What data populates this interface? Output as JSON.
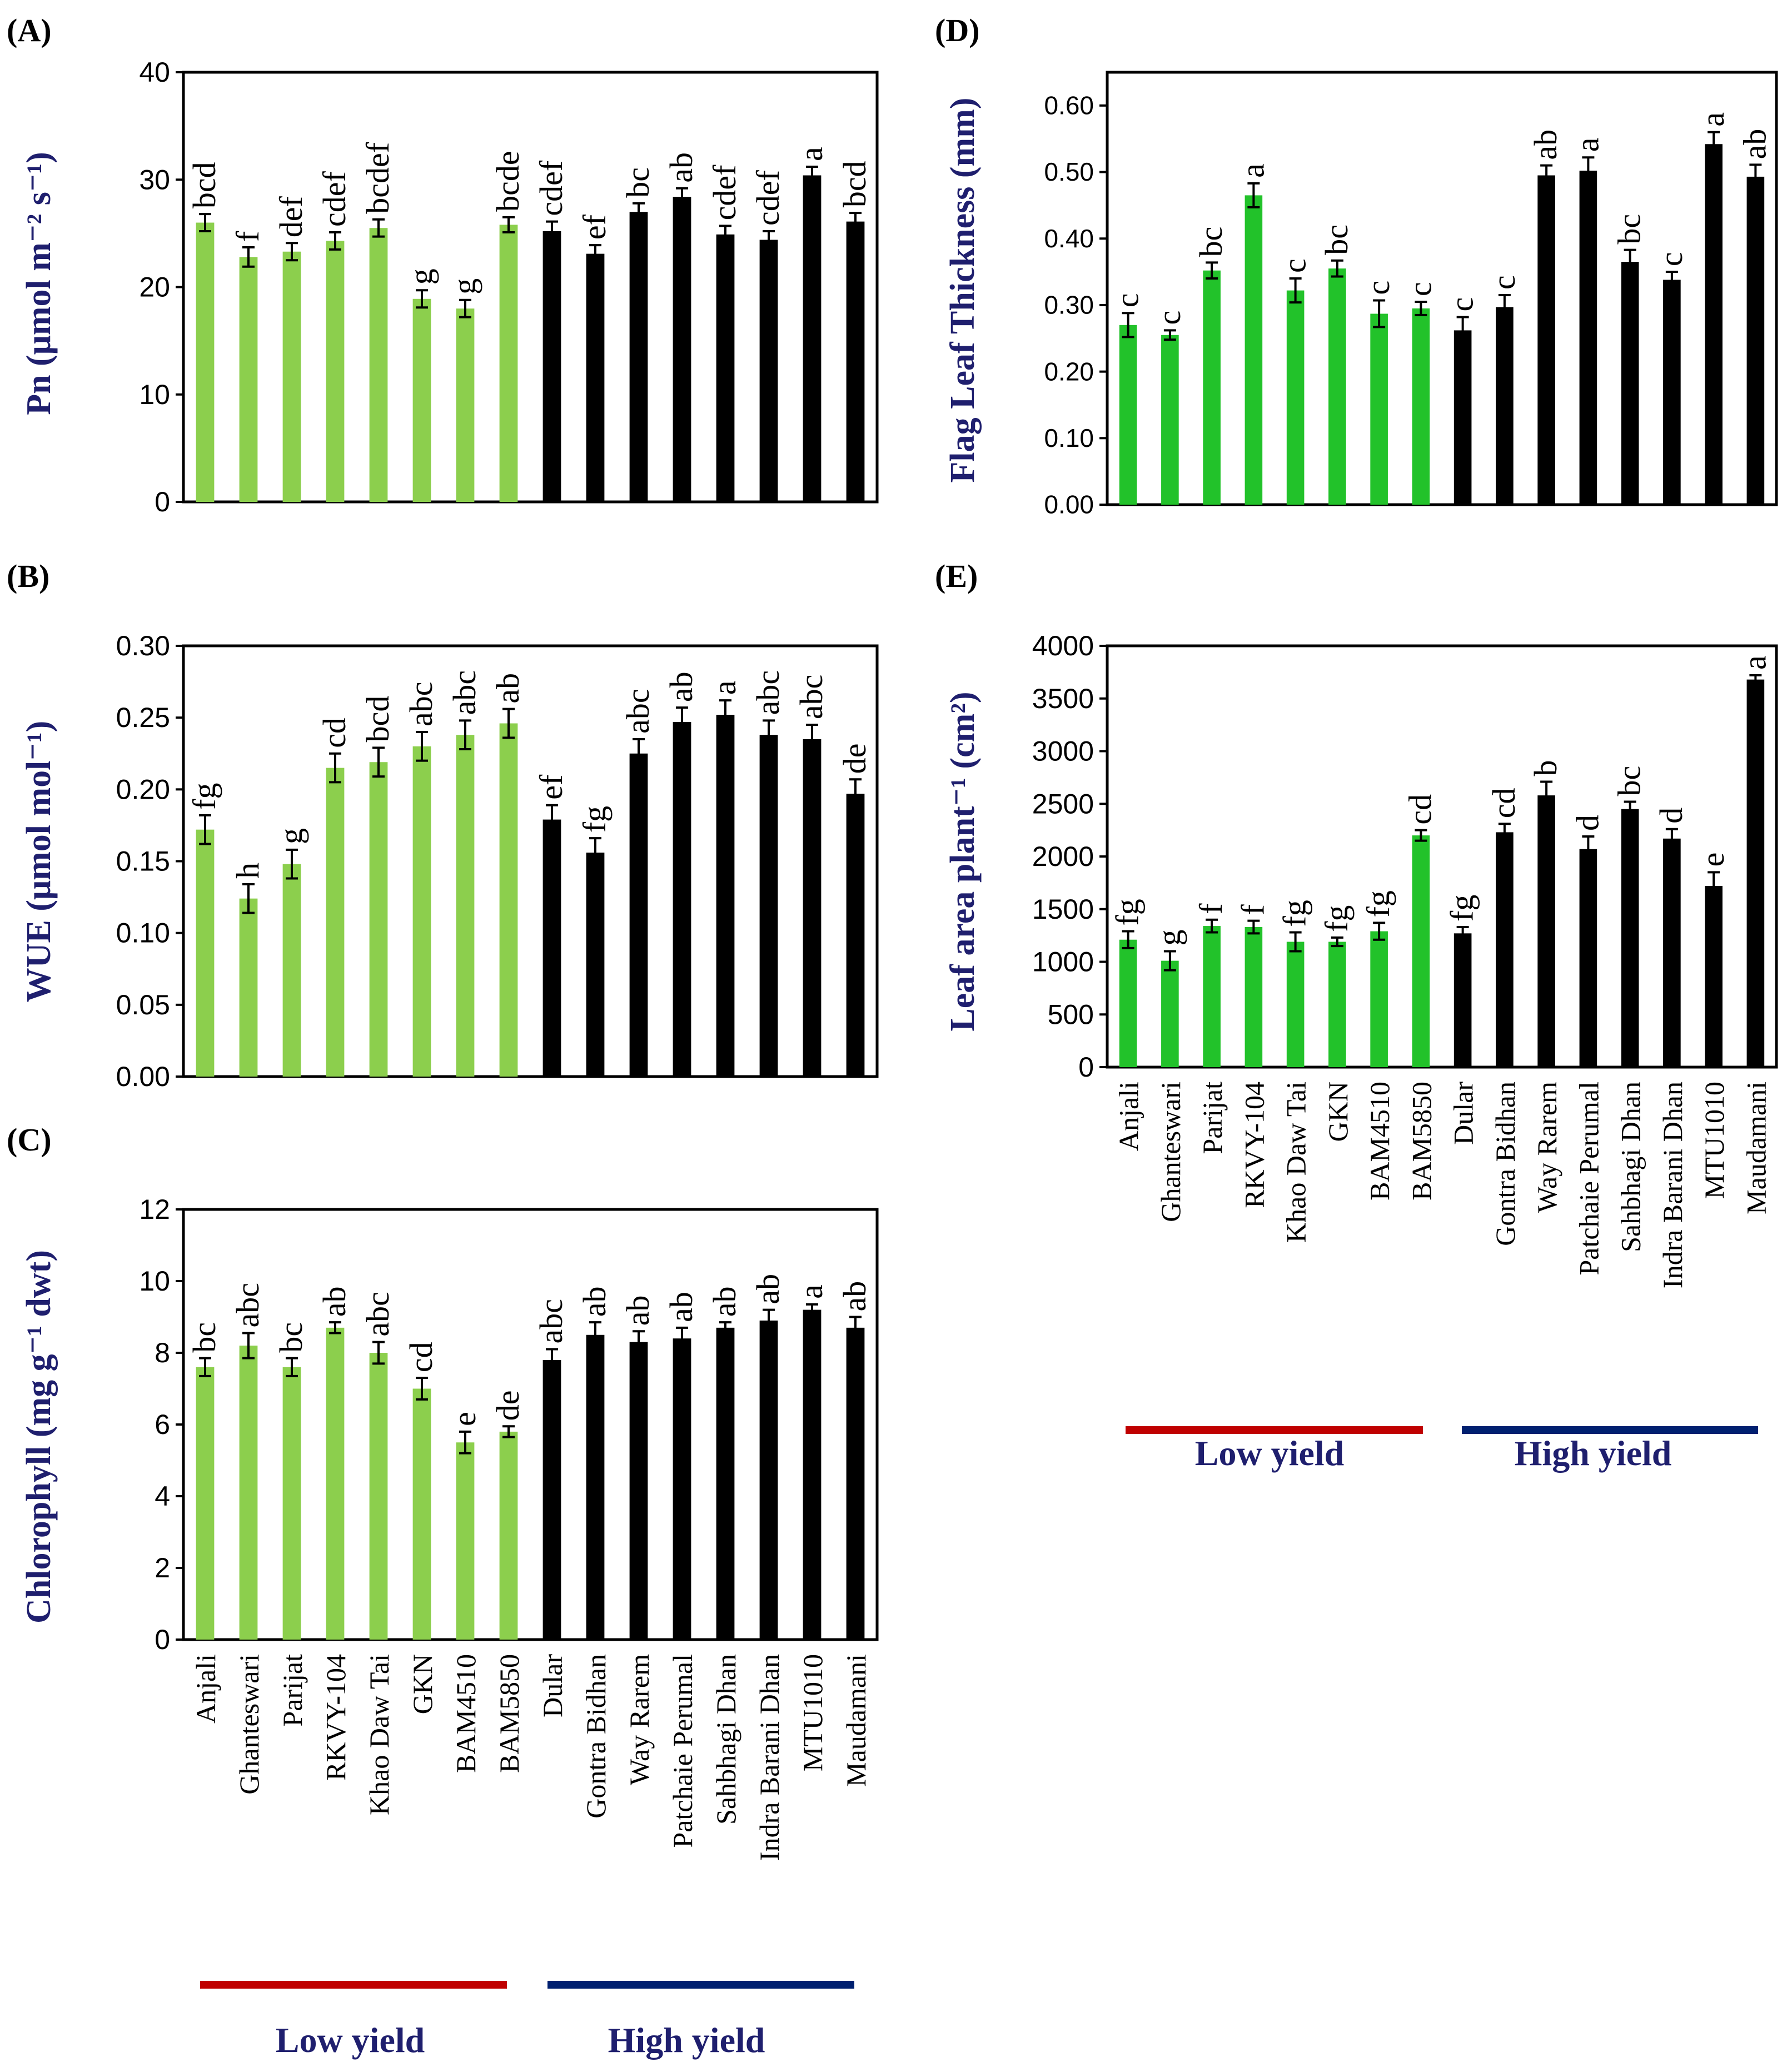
{
  "colors": {
    "low_yield_bar_abc": "#8ccf4d",
    "low_yield_bar_de": "#22c22a",
    "high_yield_bar": "#000000",
    "axis_label": "#1f1f6e",
    "low_yield_line": "#c00000",
    "high_yield_line": "#002070"
  },
  "categories": [
    "Anjali",
    "Ghanteswari",
    "Parijat",
    "RKVY-104",
    "Khao Daw Tai",
    "GKN",
    "BAM4510",
    "BAM5850",
    "Dular",
    "Gontra Bidhan",
    "Way Rarem",
    "Patchaie Perumal",
    "Sahbhagi Dhan",
    "Indra Barani Dhan",
    "MTU1010",
    "Maudamani"
  ],
  "legend": {
    "low_yield": "Low yield",
    "high_yield": "High yield"
  },
  "chart_data": [
    {
      "id": "A",
      "panel_label": "(A)",
      "type": "bar",
      "ylabel": "Pn (μmol m⁻² s⁻¹)",
      "ylim": [
        0,
        40
      ],
      "yticks": [
        0,
        10,
        20,
        30,
        40
      ],
      "tick_format": "0",
      "values": [
        26.0,
        22.8,
        23.3,
        24.3,
        25.5,
        18.9,
        18.0,
        25.8,
        25.2,
        23.1,
        27.0,
        28.4,
        24.9,
        24.4,
        30.4,
        26.1
      ],
      "errors": [
        0.8,
        0.9,
        0.8,
        0.8,
        0.8,
        0.8,
        0.8,
        0.7,
        0.9,
        0.8,
        0.8,
        0.8,
        0.8,
        0.8,
        0.8,
        0.8
      ],
      "letters": [
        "bcd",
        "f",
        "def",
        "cdef",
        "bcdef",
        "g",
        "g",
        "bcde",
        "cdef",
        "ef",
        "bc",
        "ab",
        "cdef",
        "cdef",
        "a",
        "bcd"
      ]
    },
    {
      "id": "B",
      "panel_label": "(B)",
      "type": "bar",
      "ylabel": "WUE (μmol mol⁻¹)",
      "ylim": [
        0,
        0.3
      ],
      "yticks": [
        0,
        0.05,
        0.1,
        0.15,
        0.2,
        0.25,
        0.3
      ],
      "tick_format": "0.00",
      "values": [
        0.172,
        0.124,
        0.148,
        0.215,
        0.219,
        0.23,
        0.238,
        0.246,
        0.179,
        0.156,
        0.225,
        0.247,
        0.252,
        0.238,
        0.235,
        0.197
      ],
      "errors": [
        0.01,
        0.01,
        0.01,
        0.01,
        0.01,
        0.01,
        0.01,
        0.01,
        0.01,
        0.01,
        0.01,
        0.01,
        0.01,
        0.01,
        0.01,
        0.01
      ],
      "letters": [
        "fg",
        "h",
        "g",
        "cd",
        "bcd",
        "abc",
        "abc",
        "ab",
        "ef",
        "fg",
        "abc",
        "ab",
        "a",
        "abc",
        "abc",
        "de"
      ]
    },
    {
      "id": "C",
      "panel_label": "(C)",
      "type": "bar",
      "ylabel": "Chlorophyll (mg g⁻¹ dwt)",
      "ylim": [
        0,
        12
      ],
      "yticks": [
        0,
        2,
        4,
        6,
        8,
        10,
        12
      ],
      "tick_format": "0",
      "values": [
        7.6,
        8.2,
        7.6,
        8.7,
        8.0,
        7.0,
        5.5,
        5.8,
        7.8,
        8.5,
        8.3,
        8.4,
        8.7,
        8.9,
        9.2,
        8.7
      ],
      "errors": [
        0.25,
        0.35,
        0.25,
        0.15,
        0.3,
        0.3,
        0.3,
        0.15,
        0.3,
        0.35,
        0.3,
        0.3,
        0.15,
        0.3,
        0.15,
        0.3
      ],
      "letters": [
        "bc",
        "abc",
        "bc",
        "ab",
        "abc",
        "cd",
        "e",
        "de",
        "abc",
        "ab",
        "ab",
        "ab",
        "ab",
        "ab",
        "a",
        "ab"
      ]
    },
    {
      "id": "D",
      "panel_label": "(D)",
      "type": "bar",
      "ylabel": "Flag Leaf Thickness (mm)",
      "ylim": [
        0,
        0.65
      ],
      "yticks": [
        0,
        0.1,
        0.2,
        0.3,
        0.4,
        0.5,
        0.6
      ],
      "tick_format": "0.00",
      "values": [
        0.27,
        0.255,
        0.352,
        0.465,
        0.322,
        0.355,
        0.287,
        0.295,
        0.262,
        0.297,
        0.495,
        0.502,
        0.365,
        0.338,
        0.542,
        0.493
      ],
      "errors": [
        0.018,
        0.007,
        0.012,
        0.018,
        0.018,
        0.012,
        0.02,
        0.01,
        0.02,
        0.018,
        0.015,
        0.02,
        0.018,
        0.012,
        0.018,
        0.018
      ],
      "letters": [
        "c",
        "c",
        "bc",
        "a",
        "c",
        "bc",
        "c",
        "c",
        "c",
        "c",
        "ab",
        "a",
        "bc",
        "c",
        "a",
        "ab"
      ]
    },
    {
      "id": "E",
      "panel_label": "(E)",
      "type": "bar",
      "ylabel": "Leaf area plant⁻¹ (cm²)",
      "ylim": [
        0,
        4000
      ],
      "yticks": [
        0,
        500,
        1000,
        1500,
        2000,
        2500,
        3000,
        3500,
        4000
      ],
      "tick_format": "0",
      "values": [
        1210,
        1010,
        1340,
        1330,
        1190,
        1190,
        1290,
        2200,
        1270,
        2230,
        2580,
        2070,
        2450,
        2170,
        1720,
        3680
      ],
      "errors": [
        80,
        90,
        60,
        60,
        90,
        40,
        80,
        50,
        60,
        80,
        130,
        120,
        70,
        90,
        130,
        40
      ],
      "letters": [
        "fg",
        "g",
        "f",
        "f",
        "fg",
        "fg",
        "fg",
        "cd",
        "fg",
        "cd",
        "b",
        "d",
        "bc",
        "d",
        "e",
        "a"
      ]
    }
  ]
}
